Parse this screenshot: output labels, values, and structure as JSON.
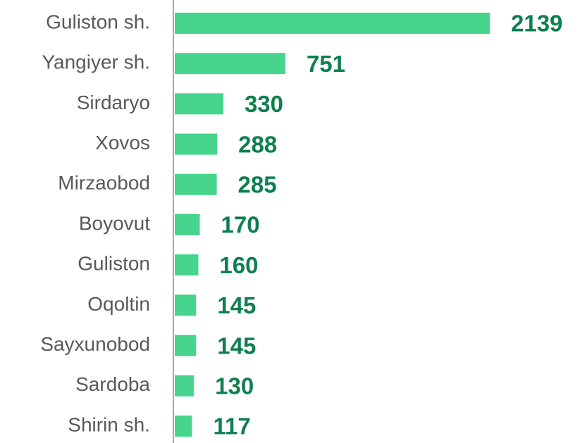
{
  "chart_data": {
    "type": "bar",
    "orientation": "horizontal",
    "categories": [
      "Guliston sh.",
      "Yangiyer sh.",
      "Sirdaryo",
      "Xovos",
      "Mirzaobod",
      "Boyovut",
      "Guliston",
      "Oqoltin",
      "Sayxunobod",
      "Sardoba",
      "Shirin sh."
    ],
    "values": [
      2139,
      751,
      330,
      288,
      285,
      170,
      160,
      145,
      145,
      130,
      117
    ],
    "color": "#47d48d"
  }
}
